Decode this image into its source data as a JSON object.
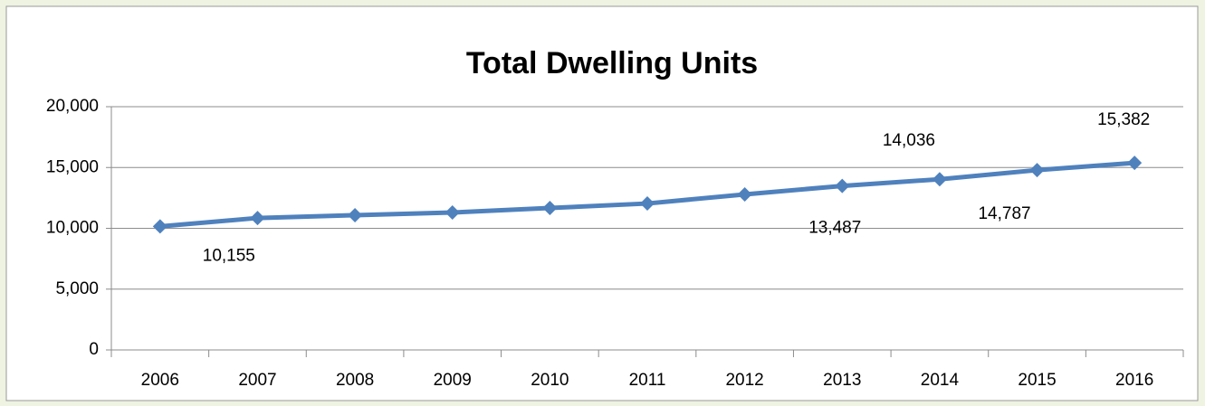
{
  "chart_data": {
    "type": "line",
    "title": "Total Dwelling Units",
    "categories": [
      "2006",
      "2007",
      "2008",
      "2009",
      "2010",
      "2011",
      "2012",
      "2013",
      "2014",
      "2015",
      "2016"
    ],
    "series": [
      {
        "name": "Total Dwelling Units",
        "color": "#4f81bd",
        "values": [
          10155,
          10850,
          11080,
          11300,
          11670,
          12040,
          12790,
          13487,
          14036,
          14787,
          15382
        ],
        "value_labels": [
          "10,155",
          null,
          null,
          null,
          null,
          null,
          null,
          "13,487",
          "14,036",
          "14,787",
          "15,382"
        ]
      }
    ],
    "ylim": [
      0,
      20000
    ],
    "yticks": [
      0,
      {
        "value": 5000,
        "label": "5,000"
      },
      {
        "value": 10000,
        "label": "10,000"
      },
      {
        "value": 15000,
        "label": "15,000"
      },
      {
        "value": 20000,
        "label": "20,000"
      }
    ],
    "grid": true
  }
}
